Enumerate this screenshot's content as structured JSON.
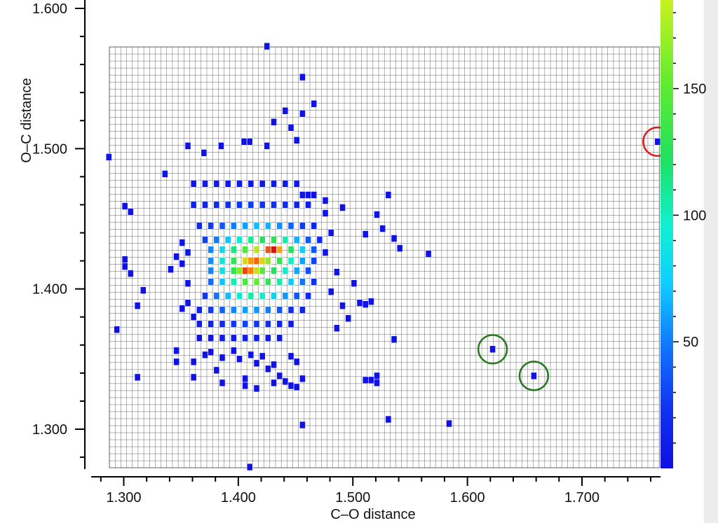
{
  "chart_data": {
    "type": "heatmap",
    "title": "",
    "xlabel": "C–O distance",
    "ylabel": "O–C distance",
    "xlim": [
      1.2875,
      1.7675
    ],
    "ylim": [
      1.2725,
      1.5725
    ],
    "bin_width": 0.005,
    "x_ticks": [
      "1.300",
      "1.400",
      "1.500",
      "1.600",
      "1.700"
    ],
    "y_ticks": [
      "1.300",
      "1.400",
      "1.500",
      "1.600"
    ],
    "colorbar": {
      "min": 0,
      "max": 185,
      "ticks": [
        "50",
        "100",
        "150"
      ]
    },
    "grid": true,
    "cells": [
      [
        1.287,
        1.494,
        1
      ],
      [
        1.294,
        1.371,
        1
      ],
      [
        1.301,
        1.459,
        1
      ],
      [
        1.301,
        1.421,
        1
      ],
      [
        1.301,
        1.416,
        1
      ],
      [
        1.306,
        1.455,
        1
      ],
      [
        1.306,
        1.411,
        1
      ],
      [
        1.312,
        1.388,
        1
      ],
      [
        1.312,
        1.337,
        1
      ],
      [
        1.317,
        1.399,
        1
      ],
      [
        1.336,
        1.482,
        1
      ],
      [
        1.341,
        1.414,
        1
      ],
      [
        1.356,
        1.502,
        1
      ],
      [
        1.37,
        1.497,
        1
      ],
      [
        1.385,
        1.502,
        1
      ],
      [
        1.405,
        1.505,
        1
      ],
      [
        1.425,
        1.502,
        1
      ],
      [
        1.451,
        1.506,
        1
      ],
      [
        1.446,
        1.515,
        1
      ],
      [
        1.431,
        1.519,
        1
      ],
      [
        1.441,
        1.527,
        1
      ],
      [
        1.456,
        1.525,
        1
      ],
      [
        1.466,
        1.532,
        1
      ],
      [
        1.456,
        1.551,
        1
      ],
      [
        1.425,
        1.573,
        1
      ],
      [
        1.41,
        1.505,
        1
      ],
      [
        1.361,
        1.475,
        3
      ],
      [
        1.371,
        1.475,
        4
      ],
      [
        1.381,
        1.475,
        4
      ],
      [
        1.391,
        1.475,
        3
      ],
      [
        1.401,
        1.475,
        4
      ],
      [
        1.411,
        1.475,
        3
      ],
      [
        1.421,
        1.475,
        3
      ],
      [
        1.431,
        1.475,
        4
      ],
      [
        1.441,
        1.475,
        3
      ],
      [
        1.451,
        1.475,
        3
      ],
      [
        1.361,
        1.46,
        6
      ],
      [
        1.371,
        1.46,
        8
      ],
      [
        1.381,
        1.46,
        10
      ],
      [
        1.391,
        1.46,
        12
      ],
      [
        1.401,
        1.46,
        14
      ],
      [
        1.411,
        1.46,
        15
      ],
      [
        1.421,
        1.46,
        13
      ],
      [
        1.431,
        1.46,
        12
      ],
      [
        1.441,
        1.46,
        10
      ],
      [
        1.451,
        1.46,
        7
      ],
      [
        1.461,
        1.46,
        5
      ],
      [
        1.366,
        1.445,
        10
      ],
      [
        1.376,
        1.445,
        14
      ],
      [
        1.386,
        1.445,
        20
      ],
      [
        1.396,
        1.445,
        28
      ],
      [
        1.406,
        1.445,
        36
      ],
      [
        1.416,
        1.445,
        42
      ],
      [
        1.426,
        1.445,
        40
      ],
      [
        1.436,
        1.445,
        32
      ],
      [
        1.446,
        1.445,
        22
      ],
      [
        1.456,
        1.445,
        14
      ],
      [
        1.466,
        1.445,
        8
      ],
      [
        1.371,
        1.435,
        16
      ],
      [
        1.381,
        1.435,
        28
      ],
      [
        1.391,
        1.435,
        44
      ],
      [
        1.401,
        1.435,
        62
      ],
      [
        1.411,
        1.435,
        78
      ],
      [
        1.421,
        1.435,
        92
      ],
      [
        1.431,
        1.435,
        96
      ],
      [
        1.441,
        1.435,
        70
      ],
      [
        1.451,
        1.435,
        40
      ],
      [
        1.461,
        1.435,
        20
      ],
      [
        1.471,
        1.435,
        10
      ],
      [
        1.376,
        1.428,
        30
      ],
      [
        1.386,
        1.428,
        52
      ],
      [
        1.396,
        1.428,
        82
      ],
      [
        1.406,
        1.428,
        112
      ],
      [
        1.416,
        1.428,
        138
      ],
      [
        1.426,
        1.428,
        170
      ],
      [
        1.431,
        1.428,
        182
      ],
      [
        1.436,
        1.428,
        160
      ],
      [
        1.446,
        1.428,
        92
      ],
      [
        1.456,
        1.428,
        46
      ],
      [
        1.466,
        1.428,
        20
      ],
      [
        1.376,
        1.42,
        32
      ],
      [
        1.386,
        1.42,
        60
      ],
      [
        1.396,
        1.42,
        98
      ],
      [
        1.406,
        1.42,
        145
      ],
      [
        1.411,
        1.42,
        162
      ],
      [
        1.416,
        1.42,
        168
      ],
      [
        1.421,
        1.42,
        150
      ],
      [
        1.426,
        1.42,
        130
      ],
      [
        1.436,
        1.42,
        100
      ],
      [
        1.446,
        1.42,
        66
      ],
      [
        1.456,
        1.42,
        36
      ],
      [
        1.466,
        1.42,
        16
      ],
      [
        1.376,
        1.413,
        30
      ],
      [
        1.386,
        1.413,
        56
      ],
      [
        1.396,
        1.413,
        96
      ],
      [
        1.401,
        1.413,
        128
      ],
      [
        1.406,
        1.413,
        172
      ],
      [
        1.411,
        1.413,
        165
      ],
      [
        1.416,
        1.413,
        142
      ],
      [
        1.421,
        1.413,
        115
      ],
      [
        1.431,
        1.413,
        92
      ],
      [
        1.441,
        1.413,
        64
      ],
      [
        1.451,
        1.413,
        38
      ],
      [
        1.461,
        1.413,
        18
      ],
      [
        1.376,
        1.405,
        24
      ],
      [
        1.386,
        1.405,
        44
      ],
      [
        1.396,
        1.405,
        70
      ],
      [
        1.406,
        1.405,
        110
      ],
      [
        1.416,
        1.405,
        120
      ],
      [
        1.426,
        1.405,
        98
      ],
      [
        1.436,
        1.405,
        72
      ],
      [
        1.446,
        1.405,
        46
      ],
      [
        1.456,
        1.405,
        26
      ],
      [
        1.466,
        1.405,
        12
      ],
      [
        1.371,
        1.395,
        14
      ],
      [
        1.381,
        1.395,
        26
      ],
      [
        1.391,
        1.395,
        42
      ],
      [
        1.401,
        1.395,
        62
      ],
      [
        1.411,
        1.395,
        72
      ],
      [
        1.421,
        1.395,
        66
      ],
      [
        1.431,
        1.395,
        50
      ],
      [
        1.441,
        1.395,
        34
      ],
      [
        1.451,
        1.395,
        20
      ],
      [
        1.461,
        1.395,
        10
      ],
      [
        1.366,
        1.385,
        8
      ],
      [
        1.376,
        1.385,
        14
      ],
      [
        1.386,
        1.385,
        22
      ],
      [
        1.396,
        1.385,
        30
      ],
      [
        1.406,
        1.385,
        36
      ],
      [
        1.416,
        1.385,
        34
      ],
      [
        1.426,
        1.385,
        28
      ],
      [
        1.436,
        1.385,
        20
      ],
      [
        1.446,
        1.385,
        12
      ],
      [
        1.456,
        1.385,
        7
      ],
      [
        1.366,
        1.375,
        4
      ],
      [
        1.376,
        1.375,
        7
      ],
      [
        1.386,
        1.375,
        10
      ],
      [
        1.396,
        1.375,
        14
      ],
      [
        1.406,
        1.375,
        16
      ],
      [
        1.416,
        1.375,
        14
      ],
      [
        1.426,
        1.375,
        11
      ],
      [
        1.436,
        1.375,
        8
      ],
      [
        1.446,
        1.375,
        5
      ],
      [
        1.366,
        1.365,
        2
      ],
      [
        1.376,
        1.365,
        3
      ],
      [
        1.386,
        1.365,
        4
      ],
      [
        1.396,
        1.365,
        5
      ],
      [
        1.406,
        1.365,
        6
      ],
      [
        1.416,
        1.365,
        5
      ],
      [
        1.426,
        1.365,
        4
      ],
      [
        1.436,
        1.365,
        3
      ],
      [
        1.351,
        1.433,
        2
      ],
      [
        1.356,
        1.426,
        3
      ],
      [
        1.351,
        1.418,
        2
      ],
      [
        1.356,
        1.404,
        2
      ],
      [
        1.356,
        1.39,
        2
      ],
      [
        1.351,
        1.386,
        1
      ],
      [
        1.346,
        1.423,
        1
      ],
      [
        1.361,
        1.38,
        2
      ],
      [
        1.476,
        1.454,
        2
      ],
      [
        1.481,
        1.44,
        2
      ],
      [
        1.476,
        1.426,
        3
      ],
      [
        1.486,
        1.412,
        2
      ],
      [
        1.481,
        1.398,
        2
      ],
      [
        1.491,
        1.388,
        2
      ],
      [
        1.496,
        1.379,
        1
      ],
      [
        1.486,
        1.372,
        1
      ],
      [
        1.501,
        1.404,
        1
      ],
      [
        1.491,
        1.458,
        1
      ],
      [
        1.476,
        1.463,
        1
      ],
      [
        1.456,
        1.467,
        1
      ],
      [
        1.461,
        1.467,
        1
      ],
      [
        1.466,
        1.467,
        1
      ],
      [
        1.376,
        1.355,
        1
      ],
      [
        1.386,
        1.351,
        1
      ],
      [
        1.396,
        1.356,
        1
      ],
      [
        1.401,
        1.35,
        1
      ],
      [
        1.411,
        1.353,
        1
      ],
      [
        1.416,
        1.347,
        1
      ],
      [
        1.421,
        1.352,
        1
      ],
      [
        1.426,
        1.343,
        1
      ],
      [
        1.431,
        1.346,
        1
      ],
      [
        1.446,
        1.352,
        1
      ],
      [
        1.451,
        1.348,
        1
      ],
      [
        1.436,
        1.338,
        1
      ],
      [
        1.441,
        1.334,
        1
      ],
      [
        1.446,
        1.331,
        1
      ],
      [
        1.451,
        1.33,
        1
      ],
      [
        1.456,
        1.336,
        1
      ],
      [
        1.381,
        1.342,
        1
      ],
      [
        1.386,
        1.333,
        1
      ],
      [
        1.406,
        1.336,
        1
      ],
      [
        1.406,
        1.331,
        1
      ],
      [
        1.416,
        1.329,
        1
      ],
      [
        1.431,
        1.333,
        1
      ],
      [
        1.361,
        1.337,
        1
      ],
      [
        1.346,
        1.348,
        1
      ],
      [
        1.346,
        1.356,
        1
      ],
      [
        1.361,
        1.348,
        1
      ],
      [
        1.371,
        1.353,
        1
      ],
      [
        1.521,
        1.453,
        1
      ],
      [
        1.526,
        1.443,
        1
      ],
      [
        1.531,
        1.467,
        1
      ],
      [
        1.536,
        1.436,
        1
      ],
      [
        1.541,
        1.429,
        1
      ],
      [
        1.511,
        1.439,
        1
      ],
      [
        1.506,
        1.39,
        1
      ],
      [
        1.511,
        1.389,
        1
      ],
      [
        1.516,
        1.391,
        1
      ],
      [
        1.511,
        1.335,
        1
      ],
      [
        1.516,
        1.335,
        1
      ],
      [
        1.521,
        1.338,
        1
      ],
      [
        1.521,
        1.333,
        1
      ],
      [
        1.536,
        1.364,
        1
      ],
      [
        1.531,
        1.307,
        1
      ],
      [
        1.566,
        1.425,
        1
      ],
      [
        1.456,
        1.303,
        1
      ],
      [
        1.584,
        1.304,
        1
      ],
      [
        1.41,
        1.273,
        1
      ],
      [
        1.622,
        1.357,
        1
      ],
      [
        1.658,
        1.338,
        1
      ],
      [
        1.766,
        1.505,
        1
      ]
    ],
    "annotations": [
      {
        "shape": "circle",
        "color": "#e01e1e",
        "x": 1.766,
        "y": 1.505,
        "r": 0.0125
      },
      {
        "shape": "circle",
        "color": "#2a7a22",
        "x": 1.622,
        "y": 1.357,
        "r": 0.0125
      },
      {
        "shape": "circle",
        "color": "#2a7a22",
        "x": 1.658,
        "y": 1.338,
        "r": 0.0125
      }
    ]
  }
}
